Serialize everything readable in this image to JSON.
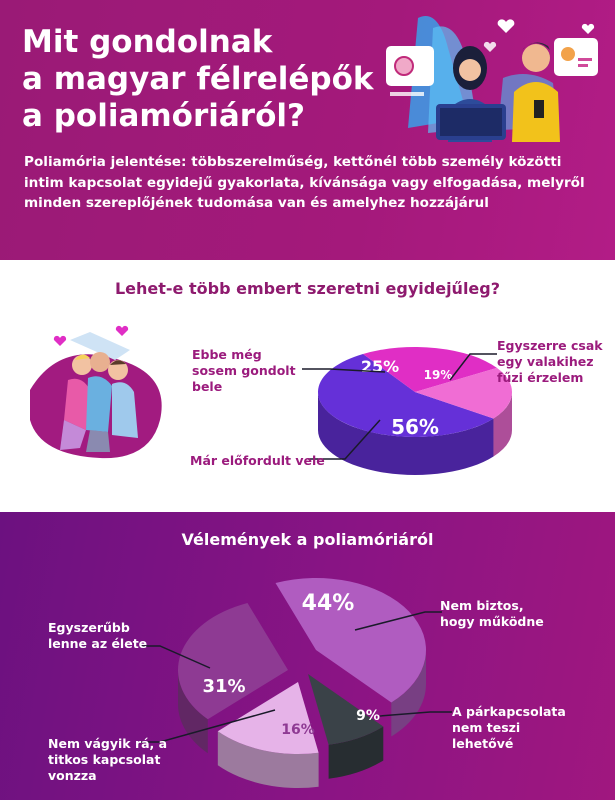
{
  "header": {
    "title_lines": [
      "Mit gondolnak",
      "a magyar félrelépők",
      "a poliamóriáról?"
    ],
    "definition": "Poliamória jelentése: többszerelműség, kettőnél több személy közötti intim kapcsolat egyidejű gyakorlata, kívánsága vagy elfogadása, melyről minden szereplőjének tudomása van és amelyhez hozzájárul"
  },
  "colors": {
    "header_bg": "#a4197b",
    "bottom_bg": "#7a1283",
    "pie1_dark": "#6530d8",
    "pie1_magenta": "#e02ec5",
    "pie1_pink": "#f06dd4",
    "pie2_light": "#b05cc0",
    "pie2_mid": "#8e3a93",
    "pie2_pale": "#e6b3e8",
    "pie2_slate": "#3a4248"
  },
  "illustrations": [
    "couple-with-laptop-icon",
    "embracing-trio-icon",
    "profile-card-icon",
    "hearts-icon"
  ],
  "chart_data": [
    {
      "type": "pie",
      "title": "Lehet-e több embert szeretni egyidejűleg?",
      "slices": [
        {
          "label": "Már előfordult vele",
          "value": 56,
          "display": "56%"
        },
        {
          "label": "Ebbe még sosem gondolt bele",
          "value": 25,
          "display": "25%"
        },
        {
          "label": "Egyszerre csak egy valakihez fűzi érzelem",
          "value": 19,
          "display": "19%"
        }
      ]
    },
    {
      "type": "pie",
      "title": "Vélemények a poliamóriáról",
      "slices": [
        {
          "label": "Nem biztos, hogy működne",
          "value": 44,
          "display": "44%"
        },
        {
          "label": "A párkapcsolata nem teszi lehetővé",
          "value": 9,
          "display": "9%"
        },
        {
          "label": "Nem vágyik rá, a titkos kapcsolat vonzza",
          "value": 16,
          "display": "16%"
        },
        {
          "label": "Egyszerűbb lenne az élete",
          "value": 31,
          "display": "31%"
        }
      ]
    }
  ]
}
